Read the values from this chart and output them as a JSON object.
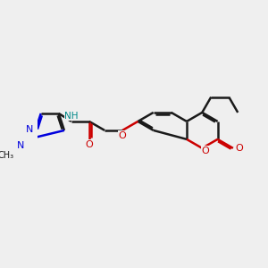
{
  "bg_color": "#efefef",
  "bond_color": "#1a1a1a",
  "n_color": "#0000dd",
  "o_color": "#cc0000",
  "nh_color": "#008888",
  "lw": 1.8,
  "figsize": [
    3.0,
    3.0
  ],
  "dpi": 100,
  "xlim": [
    -0.5,
    9.5
  ],
  "ylim": [
    -0.5,
    9.5
  ]
}
